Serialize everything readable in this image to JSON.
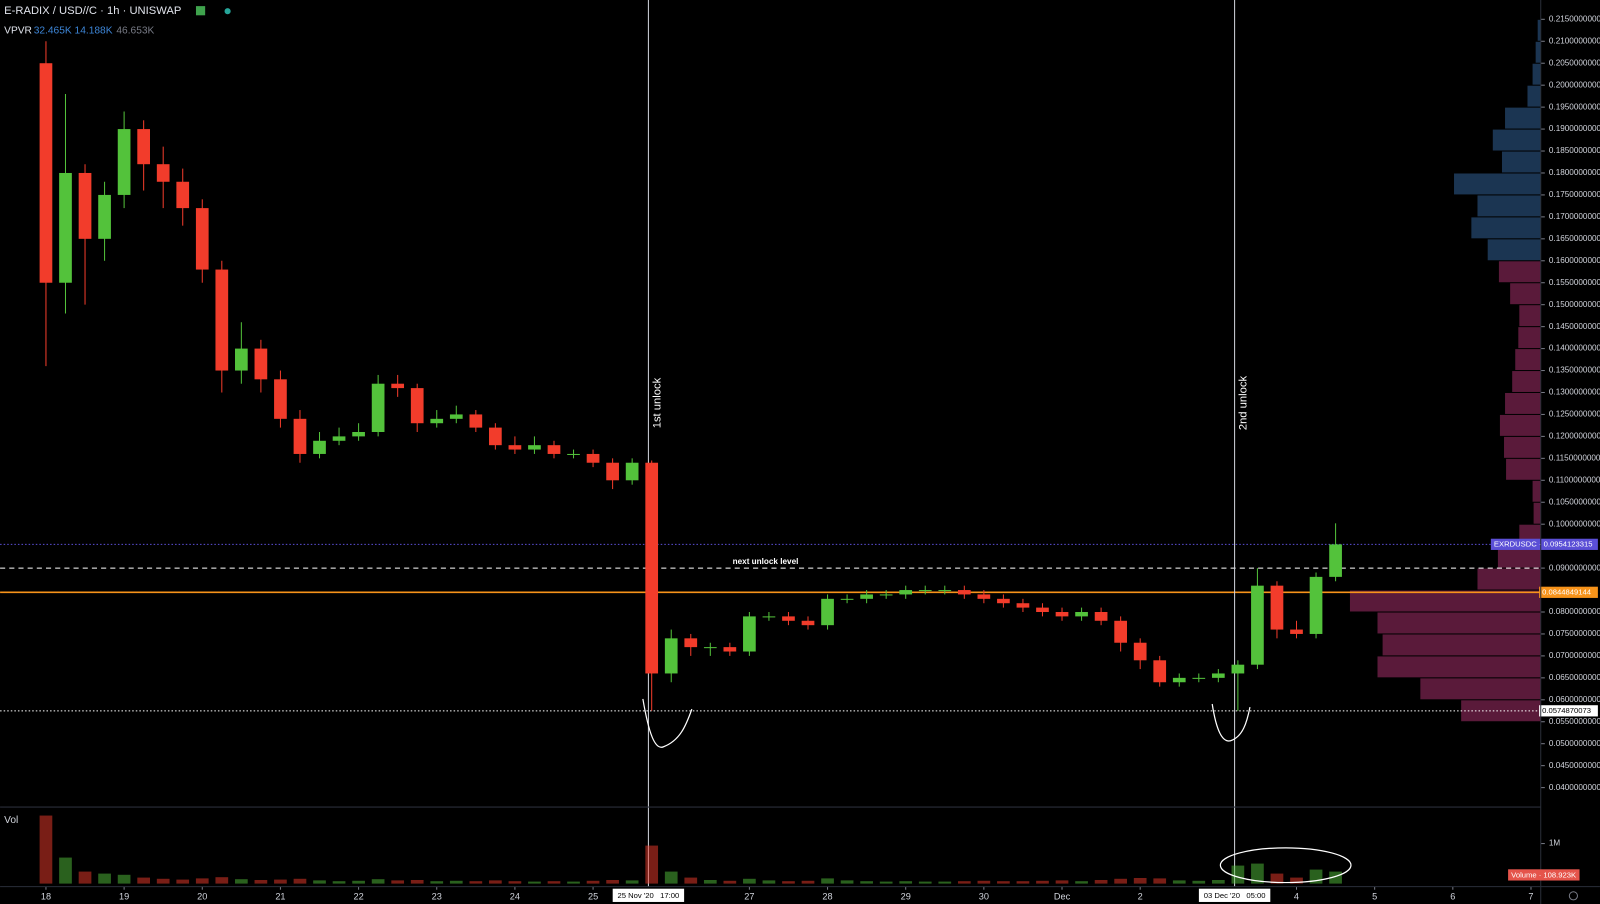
{
  "header": {
    "title": "E-RADIX / USD//C · 1h · UNISWAP",
    "indicator": "VPVR",
    "indicator_values": [
      "32.465K",
      "14.188K",
      "46.653K"
    ]
  },
  "chart_data": {
    "type": "candlestick",
    "x": [
      0,
      0.25,
      0.5,
      0.75,
      1,
      1.25,
      1.5,
      1.75,
      2,
      2.25,
      2.5,
      2.75,
      3,
      3.25,
      3.5,
      3.75,
      4,
      4.25,
      4.5,
      4.75,
      5,
      5.25,
      5.5,
      5.75,
      6,
      6.25,
      6.5,
      6.75,
      7,
      7.25,
      7.5,
      7.75,
      8,
      8.25,
      8.5,
      8.75,
      9,
      9.25,
      9.5,
      9.75,
      10,
      10.25,
      10.5,
      10.75,
      11,
      11.25,
      11.5,
      11.75,
      12,
      12.25,
      12.5,
      12.75,
      13,
      13.25,
      13.5,
      13.75,
      14,
      14.25,
      14.5,
      14.75,
      15,
      15.25,
      15.5,
      15.75,
      16,
      16.25,
      16.5
    ],
    "open": [
      0.205,
      0.155,
      0.18,
      0.165,
      0.175,
      0.19,
      0.182,
      0.178,
      0.172,
      0.158,
      0.135,
      0.14,
      0.133,
      0.124,
      0.116,
      0.119,
      0.12,
      0.121,
      0.132,
      0.131,
      0.123,
      0.124,
      0.125,
      0.122,
      0.118,
      0.117,
      0.118,
      0.116,
      0.116,
      0.114,
      0.11,
      0.114,
      0.066,
      0.074,
      0.072,
      0.072,
      0.071,
      0.079,
      0.079,
      0.078,
      0.077,
      0.083,
      0.083,
      0.084,
      0.084,
      0.085,
      0.085,
      0.085,
      0.084,
      0.083,
      0.082,
      0.081,
      0.08,
      0.079,
      0.08,
      0.078,
      0.073,
      0.069,
      0.064,
      0.065,
      0.065,
      0.066,
      0.068,
      0.086,
      0.076,
      0.075,
      0.088
    ],
    "high": [
      0.21,
      0.198,
      0.182,
      0.178,
      0.194,
      0.192,
      0.186,
      0.181,
      0.174,
      0.16,
      0.146,
      0.142,
      0.135,
      0.126,
      0.121,
      0.122,
      0.123,
      0.134,
      0.134,
      0.132,
      0.126,
      0.127,
      0.126,
      0.123,
      0.12,
      0.12,
      0.119,
      0.117,
      0.117,
      0.115,
      0.115,
      0.1145,
      0.076,
      0.075,
      0.073,
      0.073,
      0.08,
      0.08,
      0.08,
      0.079,
      0.084,
      0.084,
      0.085,
      0.085,
      0.086,
      0.086,
      0.086,
      0.086,
      0.085,
      0.084,
      0.083,
      0.082,
      0.081,
      0.081,
      0.081,
      0.079,
      0.074,
      0.07,
      0.066,
      0.066,
      0.067,
      0.069,
      0.09,
      0.087,
      0.078,
      0.089,
      0.1002
    ],
    "low": [
      0.136,
      0.148,
      0.15,
      0.16,
      0.172,
      0.176,
      0.172,
      0.168,
      0.155,
      0.13,
      0.132,
      0.13,
      0.122,
      0.114,
      0.115,
      0.118,
      0.119,
      0.12,
      0.129,
      0.121,
      0.122,
      0.123,
      0.121,
      0.117,
      0.116,
      0.116,
      0.115,
      0.115,
      0.113,
      0.108,
      0.109,
      0.0575,
      0.064,
      0.07,
      0.07,
      0.07,
      0.07,
      0.078,
      0.077,
      0.076,
      0.076,
      0.082,
      0.082,
      0.083,
      0.083,
      0.084,
      0.084,
      0.083,
      0.082,
      0.081,
      0.08,
      0.079,
      0.078,
      0.078,
      0.077,
      0.071,
      0.067,
      0.063,
      0.063,
      0.064,
      0.064,
      0.0575,
      0.067,
      0.074,
      0.074,
      0.074,
      0.087
    ],
    "close": [
      0.155,
      0.18,
      0.165,
      0.175,
      0.19,
      0.182,
      0.178,
      0.172,
      0.158,
      0.135,
      0.14,
      0.133,
      0.124,
      0.116,
      0.119,
      0.12,
      0.121,
      0.132,
      0.131,
      0.123,
      0.124,
      0.125,
      0.122,
      0.118,
      0.117,
      0.118,
      0.116,
      0.116,
      0.114,
      0.11,
      0.114,
      0.066,
      0.074,
      0.072,
      0.072,
      0.071,
      0.079,
      0.079,
      0.078,
      0.077,
      0.083,
      0.083,
      0.084,
      0.084,
      0.085,
      0.085,
      0.085,
      0.084,
      0.083,
      0.082,
      0.081,
      0.08,
      0.079,
      0.08,
      0.078,
      0.073,
      0.069,
      0.064,
      0.065,
      0.065,
      0.066,
      0.068,
      0.086,
      0.076,
      0.075,
      0.088,
      0.0954
    ],
    "volume": [
      1700000,
      650000,
      300000,
      250000,
      220000,
      150000,
      120000,
      100000,
      130000,
      160000,
      110000,
      90000,
      100000,
      120000,
      80000,
      60000,
      70000,
      110000,
      80000,
      90000,
      60000,
      70000,
      60000,
      80000,
      60000,
      50000,
      60000,
      50000,
      70000,
      90000,
      80000,
      950000,
      300000,
      150000,
      90000,
      70000,
      120000,
      80000,
      60000,
      70000,
      130000,
      80000,
      60000,
      50000,
      60000,
      50000,
      50000,
      60000,
      70000,
      60000,
      60000,
      70000,
      80000,
      60000,
      90000,
      120000,
      140000,
      130000,
      80000,
      70000,
      90000,
      450000,
      500000,
      250000,
      150000,
      350000,
      300000
    ],
    "up_color": "#53c23b",
    "down_color": "#f23c2b",
    "xlim": [
      -0.587,
      19.125
    ],
    "xticks": [
      {
        "value": 0,
        "label": "18"
      },
      {
        "value": 1,
        "label": "19"
      },
      {
        "value": 2,
        "label": "20"
      },
      {
        "value": 3,
        "label": "21"
      },
      {
        "value": 4,
        "label": "22"
      },
      {
        "value": 5,
        "label": "23"
      },
      {
        "value": 6,
        "label": "24"
      },
      {
        "value": 7,
        "label": "25"
      },
      {
        "value": 9,
        "label": "27"
      },
      {
        "value": 10,
        "label": "28"
      },
      {
        "value": 11,
        "label": "29"
      },
      {
        "value": 12,
        "label": "30"
      },
      {
        "value": 13,
        "label": "Dec"
      },
      {
        "value": 14,
        "label": "2"
      },
      {
        "value": 16,
        "label": "4"
      },
      {
        "value": 17,
        "label": "5"
      },
      {
        "value": 18,
        "label": "6"
      },
      {
        "value": 19,
        "label": "7"
      }
    ],
    "ylim": [
      0.0358,
      0.2194
    ],
    "yticks": [
      {
        "value": 0.04,
        "label": "0.0400000000"
      },
      {
        "value": 0.045,
        "label": "0.0450000000"
      },
      {
        "value": 0.05,
        "label": "0.0500000000"
      },
      {
        "value": 0.055,
        "label": "0.0550000000"
      },
      {
        "value": 0.06,
        "label": "0.0600000000"
      },
      {
        "value": 0.065,
        "label": "0.0650000000"
      },
      {
        "value": 0.07,
        "label": "0.0700000000"
      },
      {
        "value": 0.075,
        "label": "0.0750000000"
      },
      {
        "value": 0.08,
        "label": "0.0800000000"
      },
      {
        "value": 0.09,
        "label": "0.0900000000"
      },
      {
        "value": 0.1,
        "label": "0.1000000000"
      },
      {
        "value": 0.105,
        "label": "0.1050000000"
      },
      {
        "value": 0.11,
        "label": "0.1100000000"
      },
      {
        "value": 0.115,
        "label": "0.1150000000"
      },
      {
        "value": 0.12,
        "label": "0.1200000000"
      },
      {
        "value": 0.125,
        "label": "0.1250000000"
      },
      {
        "value": 0.13,
        "label": "0.1300000000"
      },
      {
        "value": 0.135,
        "label": "0.1350000000"
      },
      {
        "value": 0.14,
        "label": "0.1400000000"
      },
      {
        "value": 0.145,
        "label": "0.1450000000"
      },
      {
        "value": 0.15,
        "label": "0.1500000000"
      },
      {
        "value": 0.155,
        "label": "0.1550000000"
      },
      {
        "value": 0.16,
        "label": "0.1600000000"
      },
      {
        "value": 0.165,
        "label": "0.1650000000"
      },
      {
        "value": 0.17,
        "label": "0.1700000000"
      },
      {
        "value": 0.175,
        "label": "0.1750000000"
      },
      {
        "value": 0.18,
        "label": "0.1800000000"
      },
      {
        "value": 0.185,
        "label": "0.1850000000"
      },
      {
        "value": 0.19,
        "label": "0.1900000000"
      },
      {
        "value": 0.195,
        "label": "0.1950000000"
      },
      {
        "value": 0.2,
        "label": "0.2000000000"
      },
      {
        "value": 0.205,
        "label": "0.2050000000"
      },
      {
        "value": 0.21,
        "label": "0.2100000000"
      },
      {
        "value": 0.215,
        "label": "0.2150000000"
      }
    ],
    "volume_title": "Vol",
    "volume_ylim": [
      0,
      1810000
    ],
    "volume_ticks": [
      {
        "value": 1000000,
        "label": "1M"
      }
    ],
    "volume_label": "Volume · 108.923K",
    "vlines": [
      {
        "x": 7.708,
        "label": "1st unlock",
        "time_label": "25 Nov '20   17:00"
      },
      {
        "x": 15.208,
        "label": "2nd unlock",
        "time_label": "03 Dec '20   05:00"
      }
    ],
    "hlines": [
      {
        "value": 0.0954123315,
        "label": "EXRDUSDC · 0.0954123315",
        "color": "#5b4fd6",
        "style": "dotted"
      },
      {
        "value": 0.0844849144,
        "label": "0.0844849144",
        "color": "#f7931a",
        "style": "solid"
      },
      {
        "value": 0.09,
        "text": "next unlock level",
        "color": "#ffffff",
        "style": "dashed"
      },
      {
        "value": 0.0574870073,
        "label": "0.0574870073",
        "color": "#ffffff",
        "style": "dotted"
      }
    ],
    "vpvr": {
      "bin_edges": [
        0.055,
        0.06,
        0.065,
        0.07,
        0.075,
        0.08,
        0.085,
        0.09,
        0.095,
        0.1,
        0.105,
        0.11,
        0.115,
        0.12,
        0.125,
        0.13,
        0.135,
        0.14,
        0.145,
        0.15,
        0.155,
        0.16,
        0.165,
        0.17,
        0.175,
        0.18,
        0.185,
        0.19,
        0.195,
        0.2,
        0.205,
        0.21,
        0.215
      ],
      "volumes": [
        78,
        118,
        160,
        155,
        160,
        187,
        62,
        42,
        21,
        7,
        8,
        34,
        36,
        40,
        35,
        28,
        25,
        22,
        21,
        30,
        41,
        52,
        68,
        62,
        85,
        38,
        47,
        35,
        13,
        8,
        5,
        3
      ],
      "colors": [
        "#5a1a3a",
        "#5a1a3a",
        "#5a1a3a",
        "#5a1a3a",
        "#5a1a3a",
        "#5a1a3a",
        "#5a1a3a",
        "#5a1a3a",
        "#5a1a3a",
        "#5a1a3a",
        "#5a1a3a",
        "#5a1a3a",
        "#5a1a3a",
        "#5a1a3a",
        "#5a1a3a",
        "#5a1a3a",
        "#5a1a3a",
        "#5a1a3a",
        "#5a1a3a",
        "#5a1a3a",
        "#5a1a3a",
        "#1b3552",
        "#1b3552",
        "#1b3552",
        "#1b3552",
        "#1b3552",
        "#1b3552",
        "#1b3552",
        "#1b3552",
        "#1b3552",
        "#1b3552",
        "#1b3552"
      ]
    }
  }
}
